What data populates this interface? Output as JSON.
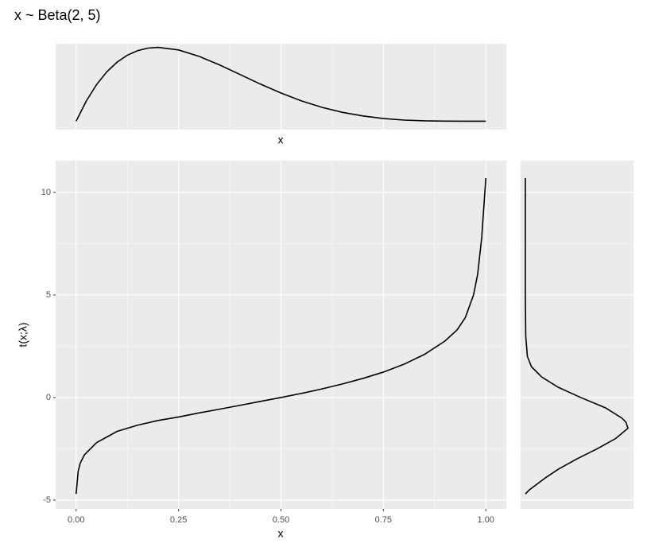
{
  "chart_data": [
    {
      "type": "line",
      "title": "x ~  Beta(2, 5)",
      "xlabel": "x",
      "x": [
        0,
        0.025,
        0.05,
        0.075,
        0.1,
        0.125,
        0.15,
        0.175,
        0.2,
        0.25,
        0.3,
        0.35,
        0.4,
        0.45,
        0.5,
        0.55,
        0.6,
        0.65,
        0.7,
        0.75,
        0.8,
        0.85,
        0.9,
        0.95,
        1
      ],
      "values": [
        0,
        0.677,
        1.222,
        1.646,
        1.968,
        2.198,
        2.349,
        2.434,
        2.458,
        2.373,
        2.161,
        1.874,
        1.555,
        1.235,
        0.938,
        0.676,
        0.461,
        0.294,
        0.175,
        0.088,
        0.038,
        0.013,
        0.003,
        0.0002,
        0
      ],
      "xlim": [
        -0.05,
        1.05
      ],
      "ylim": [
        -0.28,
        2.58
      ],
      "color": "#000000",
      "grid": true
    },
    {
      "type": "line",
      "xlabel": "x",
      "ylabel": "t(x;λ)",
      "x": [
        0,
        0.005,
        0.01,
        0.02,
        0.05,
        0.1,
        0.15,
        0.2,
        0.25,
        0.3,
        0.35,
        0.4,
        0.45,
        0.5,
        0.55,
        0.6,
        0.65,
        0.7,
        0.75,
        0.8,
        0.85,
        0.9,
        0.93,
        0.95,
        0.97,
        0.98,
        0.99,
        1
      ],
      "values": [
        -4.7,
        -3.6,
        -3.2,
        -2.8,
        -2.2,
        -1.65,
        -1.35,
        -1.12,
        -0.95,
        -0.75,
        -0.57,
        -0.38,
        -0.19,
        0,
        0.2,
        0.42,
        0.66,
        0.93,
        1.24,
        1.62,
        2.1,
        2.75,
        3.3,
        3.9,
        5.0,
        6.0,
        7.8,
        10.7
      ],
      "xlim": [
        -0.05,
        1.05
      ],
      "ylim": [
        -5.43,
        11.55
      ],
      "xticks": [
        {
          "value": 0,
          "label": "0.00"
        },
        {
          "value": 0.25,
          "label": "0.25"
        },
        {
          "value": 0.5,
          "label": "0.50"
        },
        {
          "value": 0.75,
          "label": "0.75"
        },
        {
          "value": 1,
          "label": "1.00"
        }
      ],
      "yticks": [
        -5,
        0,
        5,
        10
      ],
      "color": "#000000",
      "grid": true
    },
    {
      "type": "line",
      "orientation": "horizontal",
      "y": [
        -4.7,
        -4.5,
        -4.2,
        -3.9,
        -3.5,
        -3,
        -2.5,
        -2,
        -1.5,
        -1.2,
        -1,
        -0.5,
        0,
        0.5,
        1,
        1.5,
        2,
        3,
        5,
        10.7
      ],
      "values": [
        0,
        0.02,
        0.06,
        0.1,
        0.16,
        0.25,
        0.35,
        0.44,
        0.5,
        0.49,
        0.47,
        0.39,
        0.27,
        0.16,
        0.08,
        0.03,
        0.01,
        0.002,
        0,
        0
      ],
      "xlim": [
        -0.023,
        0.527
      ],
      "color": "#000000",
      "grid": true
    }
  ]
}
